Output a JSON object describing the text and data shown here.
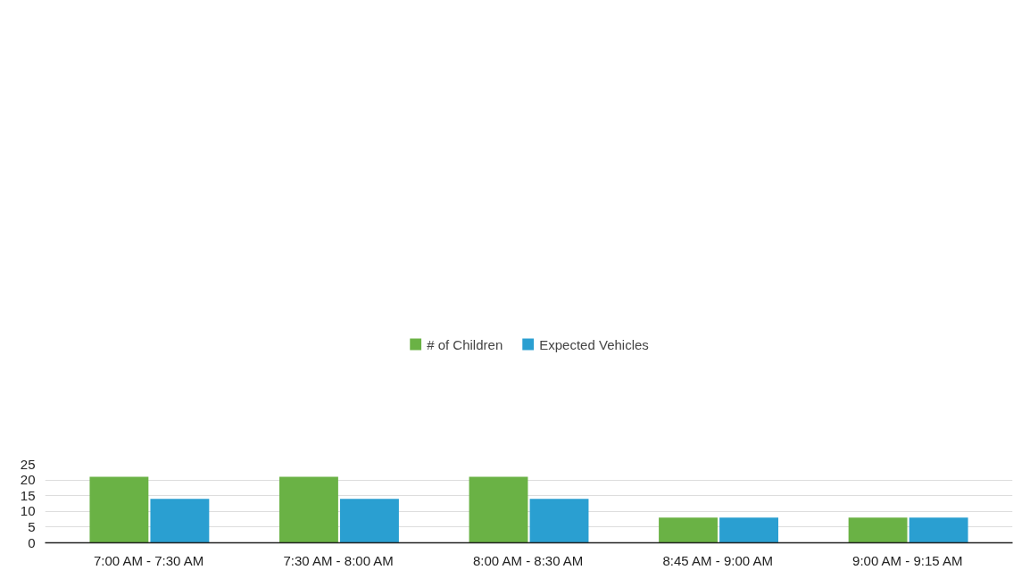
{
  "chart_data": {
    "type": "bar",
    "categories": [
      "7:00 AM - 7:30 AM",
      "7:30 AM - 8:00 AM",
      "8:00 AM - 8:30 AM",
      "8:45 AM - 9:00 AM",
      "9:00 AM - 9:15 AM"
    ],
    "series": [
      {
        "name": "# of Children",
        "color": "#6ab245",
        "values": [
          21,
          21,
          21,
          8,
          8
        ]
      },
      {
        "name": "Expected Vehicles",
        "color": "#2a9fd1",
        "values": [
          14,
          14,
          14,
          8,
          8
        ]
      }
    ],
    "ylim": [
      0,
      25
    ],
    "yticks": [
      0,
      5,
      10,
      15,
      20,
      25
    ],
    "grid": "y",
    "legend": "top"
  }
}
